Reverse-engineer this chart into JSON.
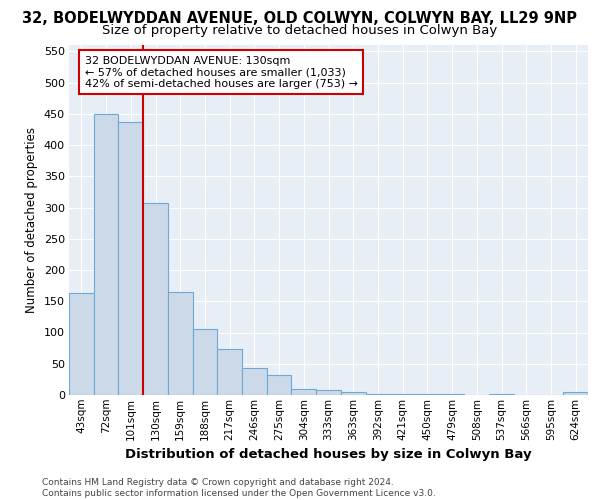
{
  "title1": "32, BODELWYDDAN AVENUE, OLD COLWYN, COLWYN BAY, LL29 9NP",
  "title2": "Size of property relative to detached houses in Colwyn Bay",
  "xlabel": "Distribution of detached houses by size in Colwyn Bay",
  "ylabel": "Number of detached properties",
  "categories": [
    "43sqm",
    "72sqm",
    "101sqm",
    "130sqm",
    "159sqm",
    "188sqm",
    "217sqm",
    "246sqm",
    "275sqm",
    "304sqm",
    "333sqm",
    "363sqm",
    "392sqm",
    "421sqm",
    "450sqm",
    "479sqm",
    "508sqm",
    "537sqm",
    "566sqm",
    "595sqm",
    "624sqm"
  ],
  "values": [
    163,
    450,
    437,
    307,
    165,
    105,
    73,
    44,
    32,
    10,
    8,
    5,
    2,
    1,
    1,
    1,
    0,
    1,
    0,
    0,
    5
  ],
  "bar_color": "#ccd9e8",
  "bar_edge_color": "#6aaad4",
  "highlight_index": 3,
  "highlight_color": "#cc0000",
  "ylim": [
    0,
    560
  ],
  "yticks": [
    0,
    50,
    100,
    150,
    200,
    250,
    300,
    350,
    400,
    450,
    500,
    550
  ],
  "annotation_line1": "32 BODELWYDDAN AVENUE: 130sqm",
  "annotation_line2": "← 57% of detached houses are smaller (1,033)",
  "annotation_line3": "42% of semi-detached houses are larger (753) →",
  "bg_color": "#e8eef5",
  "grid_color": "#ffffff",
  "title1_fontsize": 10.5,
  "title2_fontsize": 9.5,
  "ylabel_fontsize": 8.5,
  "xlabel_fontsize": 9.5,
  "tick_fontsize": 8,
  "xtick_fontsize": 7.5,
  "annotation_fontsize": 8,
  "footer_line1": "Contains HM Land Registry data © Crown copyright and database right 2024.",
  "footer_line2": "Contains public sector information licensed under the Open Government Licence v3.0.",
  "footer_fontsize": 6.5
}
